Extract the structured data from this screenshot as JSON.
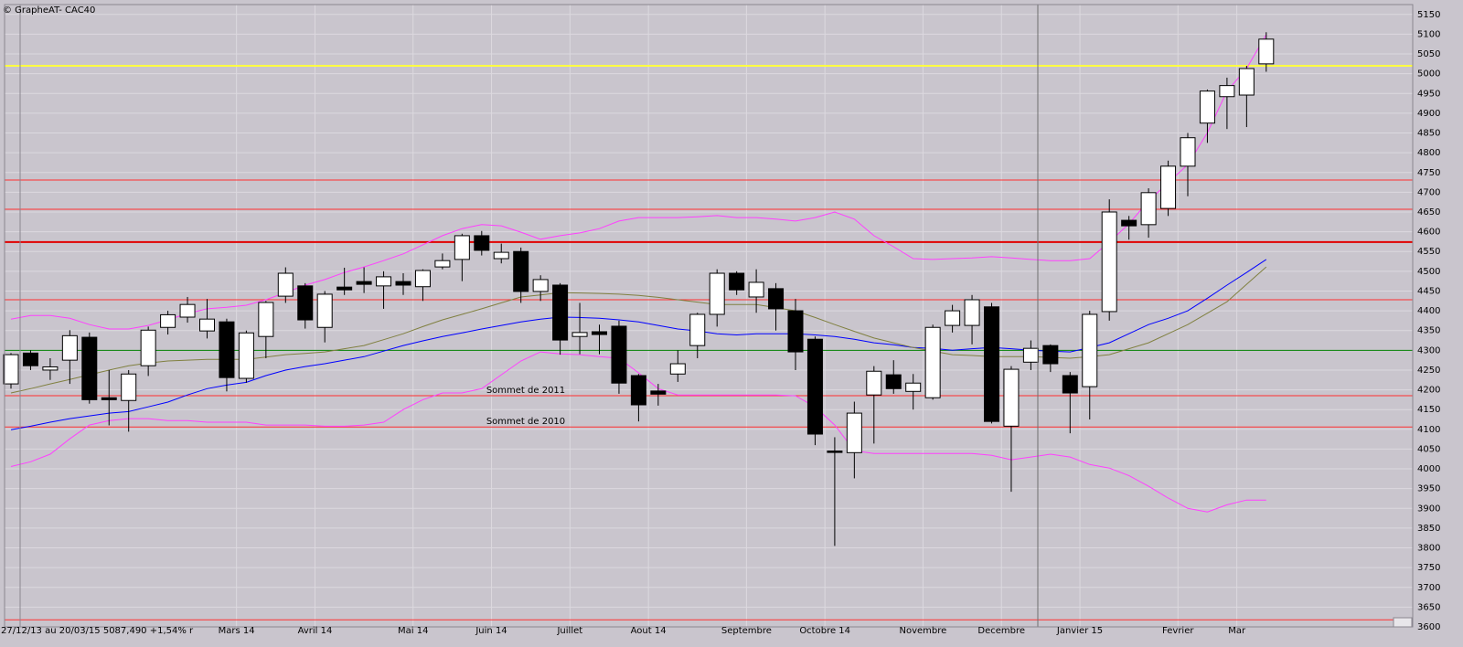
{
  "chart_data": {
    "type": "candlestick",
    "title": "© GrapheAT- CAC40",
    "footer": "27/12/13 au 20/03/15 5087,490 +1,54% r",
    "categories": [
      null,
      null,
      null,
      null,
      null,
      null,
      null,
      null,
      null,
      null,
      null,
      "Mars 14",
      null,
      null,
      null,
      "Avril 14",
      null,
      null,
      null,
      null,
      "Mai 14",
      null,
      null,
      null,
      "Juin 14",
      null,
      null,
      null,
      "Juillet",
      null,
      null,
      null,
      "Aout 14",
      null,
      null,
      null,
      null,
      "Septembre",
      null,
      null,
      null,
      "Octobre 14",
      null,
      null,
      null,
      null,
      "Novembre",
      null,
      null,
      null,
      "Decembre",
      null,
      null,
      null,
      "Janvier 15",
      null,
      null,
      null,
      null,
      "Fevrier",
      null,
      null,
      "Mar",
      null,
      null
    ],
    "open": [
      4215,
      4293,
      4250,
      4275,
      4333,
      4180,
      4173,
      4261,
      4358,
      4384,
      4349,
      4372,
      4229,
      4335,
      4437,
      4463,
      4358,
      4460,
      4474,
      4463,
      4474,
      4461,
      4511,
      4530,
      4590,
      4532,
      4550,
      4449,
      4465,
      4335,
      4347,
      4361,
      4236,
      4197,
      4240,
      4312,
      4391,
      4495,
      4435,
      4456,
      4400,
      4328,
      4045,
      4041,
      4187,
      4238,
      4196,
      4180,
      4363,
      4363,
      4410,
      4108,
      4270,
      4312,
      4236,
      4208,
      4398,
      4629,
      4618,
      4659,
      4766,
      4875,
      4942,
      4946,
      5025
    ],
    "high": [
      4293,
      4300,
      4280,
      4351,
      4345,
      4250,
      4250,
      4360,
      4400,
      4435,
      4430,
      4380,
      4350,
      4425,
      4510,
      4470,
      4450,
      4509,
      4510,
      4500,
      4495,
      4505,
      4545,
      4595,
      4602,
      4570,
      4560,
      4490,
      4470,
      4420,
      4365,
      4375,
      4240,
      4215,
      4300,
      4395,
      4505,
      4500,
      4505,
      4470,
      4430,
      4335,
      4080,
      4170,
      4260,
      4275,
      4240,
      4365,
      4415,
      4440,
      4420,
      4260,
      4325,
      4315,
      4245,
      4400,
      4682,
      4640,
      4710,
      4780,
      4850,
      4960,
      4990,
      5020,
      5105
    ],
    "low": [
      4203,
      4250,
      4225,
      4215,
      4165,
      4110,
      4094,
      4235,
      4340,
      4370,
      4330,
      4196,
      4218,
      4280,
      4420,
      4355,
      4320,
      4440,
      4445,
      4405,
      4440,
      4425,
      4505,
      4475,
      4540,
      4520,
      4420,
      4425,
      4289,
      4290,
      4290,
      4190,
      4120,
      4160,
      4220,
      4280,
      4360,
      4440,
      4395,
      4350,
      4250,
      4060,
      3805,
      3976,
      4064,
      4190,
      4150,
      4175,
      4345,
      4315,
      4115,
      3942,
      4250,
      4245,
      4090,
      4125,
      4375,
      4580,
      4585,
      4640,
      4690,
      4825,
      4860,
      4865,
      5005
    ],
    "close": [
      4289,
      4261,
      4258,
      4337,
      4175,
      4175,
      4240,
      4351,
      4390,
      4416,
      4379,
      4231,
      4344,
      4421,
      4495,
      4377,
      4442,
      4453,
      4467,
      4486,
      4465,
      4502,
      4527,
      4590,
      4553,
      4548,
      4449,
      4479,
      4326,
      4345,
      4340,
      4217,
      4162,
      4189,
      4266,
      4391,
      4495,
      4453,
      4472,
      4405,
      4296,
      4088,
      4042,
      4141,
      4247,
      4203,
      4217,
      4358,
      4400,
      4428,
      4120,
      4252,
      4305,
      4266,
      4192,
      4391,
      4650,
      4615,
      4699,
      4766,
      4838,
      4956,
      4970,
      5013,
      5087.49
    ],
    "series": [
      {
        "color": "#ff40ff",
        "values": [
          4379,
          4388,
          4388,
          4381,
          4365,
          4354,
          4354,
          4363,
          4377,
          4393,
          4405,
          4409,
          4414,
          4428,
          4446,
          4465,
          4479,
          4497,
          4511,
          4527,
          4544,
          4567,
          4590,
          4608,
          4618,
          4615,
          4599,
          4581,
          4590,
          4597,
          4608,
          4627,
          4636,
          4636,
          4636,
          4638,
          4641,
          4636,
          4636,
          4632,
          4627,
          4636,
          4650,
          4632,
          4590,
          4562,
          4532,
          4530,
          4532,
          4534,
          4537,
          4534,
          4530,
          4527,
          4527,
          4532,
          4574,
          4620,
          4678,
          4724,
          4770,
          4851,
          4956,
          5013,
          5099
        ]
      },
      {
        "color": "#ff40ff",
        "values": [
          4006,
          4018,
          4037,
          4076,
          4111,
          4122,
          4127,
          4127,
          4122,
          4122,
          4118,
          4118,
          4118,
          4111,
          4111,
          4111,
          4108,
          4108,
          4111,
          4118,
          4150,
          4175,
          4192,
          4192,
          4203,
          4238,
          4273,
          4296,
          4291,
          4289,
          4284,
          4280,
          4243,
          4203,
          4187,
          4187,
          4187,
          4187,
          4187,
          4187,
          4185,
          4157,
          4111,
          4046,
          4039,
          4039,
          4039,
          4039,
          4039,
          4039,
          4034,
          4023,
          4030,
          4037,
          4030,
          4011,
          4002,
          3983,
          3956,
          3926,
          3900,
          3891,
          3909,
          3921,
          3921
        ]
      },
      {
        "color": "#0000ff",
        "values": [
          4099,
          4108,
          4118,
          4127,
          4134,
          4141,
          4145,
          4157,
          4169,
          4187,
          4203,
          4212,
          4219,
          4236,
          4250,
          4259,
          4266,
          4275,
          4284,
          4298,
          4312,
          4324,
          4335,
          4344,
          4354,
          4363,
          4372,
          4379,
          4384,
          4383,
          4381,
          4377,
          4372,
          4363,
          4354,
          4349,
          4342,
          4339,
          4342,
          4342,
          4342,
          4339,
          4335,
          4328,
          4319,
          4314,
          4307,
          4305,
          4300,
          4304,
          4307,
          4304,
          4300,
          4298,
          4296,
          4307,
          4319,
          4342,
          4365,
          4381,
          4400,
          4432,
          4465,
          4497,
          4530
        ]
      },
      {
        "color": "#808040",
        "values": [
          4192,
          4203,
          4215,
          4226,
          4238,
          4250,
          4261,
          4268,
          4273,
          4275,
          4277,
          4277,
          4277,
          4283,
          4289,
          4292,
          4296,
          4304,
          4312,
          4327,
          4342,
          4360,
          4377,
          4391,
          4405,
          4420,
          4435,
          4440,
          4446,
          4445,
          4444,
          4442,
          4439,
          4434,
          4428,
          4422,
          4416,
          4416,
          4416,
          4408,
          4400,
          4383,
          4365,
          4348,
          4331,
          4319,
          4307,
          4298,
          4289,
          4287,
          4284,
          4284,
          4284,
          4282,
          4280,
          4284,
          4289,
          4304,
          4319,
          4342,
          4365,
          4394,
          4423,
          4467,
          4511
        ]
      }
    ],
    "levels": [
      {
        "value": 5020,
        "color": "#ffff40",
        "width": 2
      },
      {
        "value": 4731,
        "color": "#ff3030",
        "width": 1
      },
      {
        "value": 4657,
        "color": "#ff3030",
        "width": 1
      },
      {
        "value": 4574,
        "color": "#e00000",
        "width": 2
      },
      {
        "value": 4428,
        "color": "#ff3030",
        "width": 1
      },
      {
        "value": 4300,
        "color": "#008000",
        "width": 1
      },
      {
        "value": 4185,
        "color": "#ff3030",
        "width": 1,
        "label": "Sommet de 2011"
      },
      {
        "value": 4106,
        "color": "#ff3030",
        "width": 1,
        "label": "Sommet de 2010"
      },
      {
        "value": 3618,
        "color": "#ff3030",
        "width": 1
      }
    ],
    "up_color": "#ffffff",
    "down_color": "#000000",
    "ylim": [
      3600,
      5175
    ],
    "yticks": [
      3600,
      3650,
      3700,
      3750,
      3800,
      3850,
      3900,
      3950,
      4000,
      4050,
      4100,
      4150,
      4200,
      4250,
      4300,
      4350,
      4400,
      4450,
      4500,
      4550,
      4600,
      4650,
      4700,
      4750,
      4800,
      4850,
      4900,
      4950,
      5000,
      5050,
      5100,
      5150
    ],
    "grid": true
  }
}
